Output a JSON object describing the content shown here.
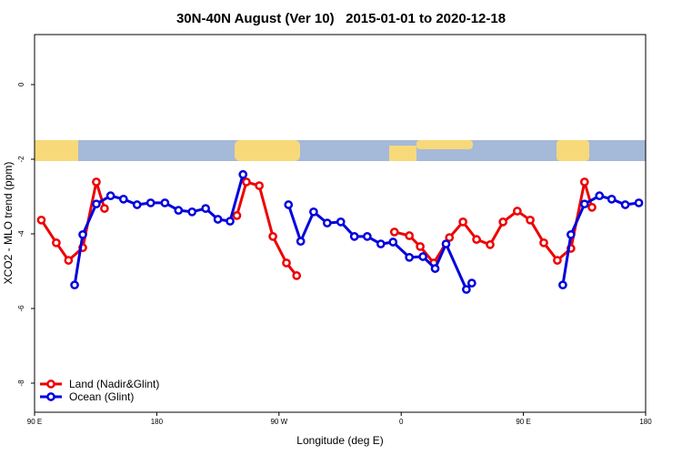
{
  "chart_data": {
    "type": "line",
    "title": "30N-40N August (Ver 10)   2015-01-01 to 2020-12-18",
    "xlabel": "Longitude (deg E)",
    "ylabel": "XCO2 - MLO trend (ppm)",
    "xlim": [
      90,
      540
    ],
    "ylim": [
      -8.78,
      1.34
    ],
    "xticks": [
      {
        "value": 90,
        "label": "90 E"
      },
      {
        "value": 180,
        "label": "180"
      },
      {
        "value": 270,
        "label": "90 W"
      },
      {
        "value": 360,
        "label": "0"
      },
      {
        "value": 450,
        "label": "90 E"
      },
      {
        "value": 540,
        "label": "180"
      }
    ],
    "yticks": [
      -8,
      -6,
      -4,
      -2,
      0
    ],
    "legend": "bottom-left",
    "series": [
      {
        "name": "Land (Nadir&Glint)",
        "color": "#ee0000",
        "x": [
          95,
          106,
          115,
          125.5,
          135.5,
          141.5,
          null,
          239,
          246,
          255.5,
          265.5,
          275.5,
          283,
          null,
          355,
          366,
          374,
          384,
          395.5,
          405.5,
          415.5,
          425.5,
          435,
          445.5,
          455,
          465,
          475,
          485,
          495,
          500.5
        ],
        "values": [
          -3.63,
          -4.24,
          -4.71,
          -4.37,
          -2.61,
          -3.32,
          null,
          -3.51,
          -2.61,
          -2.71,
          -4.07,
          -4.78,
          -5.12,
          null,
          -3.95,
          -4.05,
          -4.34,
          -4.78,
          -4.1,
          -3.68,
          -4.15,
          -4.29,
          -3.68,
          -3.39,
          -3.63,
          -4.24,
          -4.71,
          -4.39,
          -2.61,
          -3.29
        ]
      },
      {
        "name": "Ocean (Glint)",
        "color": "#0000dd",
        "x": [
          119.5,
          125.5,
          135.5,
          146,
          155.5,
          165.5,
          175.5,
          186,
          196,
          206,
          216,
          225,
          234,
          243.5,
          null,
          277,
          286,
          295.5,
          305.5,
          315.5,
          325.5,
          335,
          345,
          354,
          366,
          376,
          385,
          393,
          408,
          412,
          null,
          479,
          485,
          495,
          506,
          515,
          525,
          535
        ],
        "values": [
          -5.37,
          -4.02,
          -3.2,
          -2.98,
          -3.07,
          -3.22,
          -3.17,
          -3.17,
          -3.37,
          -3.41,
          -3.32,
          -3.61,
          -3.66,
          -2.41,
          null,
          -3.22,
          -4.2,
          -3.41,
          -3.71,
          -3.68,
          -4.07,
          -4.07,
          -4.27,
          -4.22,
          -4.63,
          -4.61,
          -4.93,
          -4.27,
          -5.49,
          -5.32,
          null,
          -5.37,
          -4.02,
          -3.2,
          -2.98,
          -3.07,
          -3.22,
          -3.17
        ]
      }
    ]
  }
}
